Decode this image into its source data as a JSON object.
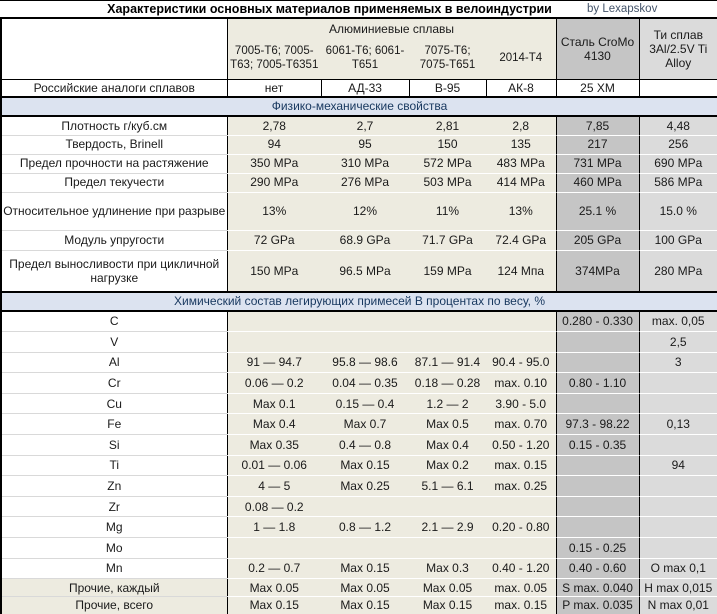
{
  "title": {
    "text": "Характеристики основных материалов применяемых в велоиндустрии",
    "byline": "by Lexapskov"
  },
  "colors": {
    "aluminum_bg": "#EDEBE0",
    "steel_bg": "#C5C5C5",
    "ti_bg": "#DBDBDB",
    "section_bg": "#DCE3F0",
    "section_text": "#17375E",
    "byline_text": "#44546A",
    "border": "#000000"
  },
  "header": {
    "group_aluminum": "Алюминиевые сплавы",
    "col_7005": "7005-T6; 7005-T63; 7005-T6351",
    "col_6061": "6061-T6; 6061-T651",
    "col_7075": "7075-T6; 7075-T651",
    "col_2014": "2014-T4",
    "col_steel": "Сталь CroMo 4130",
    "col_ti": "Ти сплав 3Al/2.5V Ti Alloy"
  },
  "table": {
    "rows": [
      {
        "type": "analog",
        "label": "Российские аналоги сплавов",
        "values": [
          "нет",
          "АД-33",
          "В-95",
          "АК-8",
          "25 ХМ",
          ""
        ]
      },
      {
        "section": "Физико-механические свойства"
      },
      {
        "label": "Плотность г/куб.см",
        "values": [
          "2,78",
          "2,7",
          "2,81",
          "2,8",
          "7,85",
          "4,48"
        ]
      },
      {
        "label": "Твердость, Brinell",
        "values": [
          "94",
          "95",
          "150",
          "135",
          "217",
          "256"
        ]
      },
      {
        "label": "Предел прочности на растяжение",
        "values": [
          "350 MPa",
          "310 MPa",
          "572 MPa",
          "483 MPa",
          "731 MPa",
          "690 MPa"
        ]
      },
      {
        "label": "Предел текучести",
        "values": [
          "290 MPa",
          "276 MPa",
          "503 MPa",
          "414 MPa",
          "460 MPa",
          "586 MPa"
        ]
      },
      {
        "label": "Относительное удлинение при разрыве",
        "values": [
          "13%",
          "12%",
          "11%",
          "13%",
          "25.1 %",
          "15.0 %"
        ]
      },
      {
        "label": "Модуль упругости",
        "values": [
          "72 GPa",
          "68.9 GPa",
          "71.7 GPa",
          "72.4 GPa",
          "205 GPa",
          "100 GPa"
        ]
      },
      {
        "label": "Предел выносливости при цикличной нагрузке",
        "values": [
          "150 MPa",
          "96.5 MPa",
          "159 MPa",
          "124 Мпа",
          "374MPa",
          "280 MPa"
        ]
      },
      {
        "section": "Химический состав легирующих примесей В процентах по весу, %"
      },
      {
        "label": "C",
        "values": [
          "",
          "",
          "",
          "",
          "0.280 - 0.330",
          "max. 0,05"
        ]
      },
      {
        "label": "V",
        "values": [
          "",
          "",
          "",
          "",
          "",
          "2,5"
        ]
      },
      {
        "label": "Al",
        "values": [
          "91 — 94.7",
          "95.8 — 98.6",
          "87.1 — 91.4",
          "90.4 - 95.0",
          "",
          "3"
        ]
      },
      {
        "label": "Cr",
        "values": [
          "0.06 — 0.2",
          "0.04 — 0.35",
          "0.18 — 0.28",
          "max. 0.10",
          "0.80 - 1.10",
          ""
        ]
      },
      {
        "label": "Cu",
        "values": [
          "Max 0.1",
          "0.15 — 0.4",
          "1.2 — 2",
          "3.90 - 5.0",
          "",
          ""
        ]
      },
      {
        "label": "Fe",
        "values": [
          "Max 0.4",
          "Max 0.7",
          "Max 0.5",
          "max. 0.70",
          "97.3 - 98.22",
          "0,13"
        ]
      },
      {
        "label": "Si",
        "values": [
          "Max 0.35",
          "0.4 — 0.8",
          "Max 0.4",
          "0.50 - 1.20",
          "0.15 - 0.35",
          ""
        ]
      },
      {
        "label": "Ti",
        "values": [
          "0.01 — 0.06",
          "Max 0.15",
          "Max 0.2",
          "max. 0.15",
          "",
          "94"
        ]
      },
      {
        "label": "Zn",
        "values": [
          "4 — 5",
          "Max 0.25",
          "5.1 — 6.1",
          "max. 0.25",
          "",
          ""
        ]
      },
      {
        "label": "Zr",
        "values": [
          "0.08 — 0.2",
          "",
          "",
          "",
          "",
          ""
        ]
      },
      {
        "label": "Mg",
        "values": [
          "1 — 1.8",
          "0.8 — 1.2",
          "2.1 — 2.9",
          "0.20 - 0.80",
          "",
          ""
        ]
      },
      {
        "label": "Mo",
        "values": [
          "",
          "",
          "",
          "",
          "0.15 - 0.25",
          ""
        ]
      },
      {
        "label": "Mn",
        "values": [
          "0.2 — 0.7",
          "Max 0.15",
          "Max 0.3",
          "0.40 - 1.20",
          "0.40 - 0.60",
          "O max 0,1"
        ]
      },
      {
        "type": "totals",
        "labelBeige": true,
        "label": "Прочие, каждый",
        "values": [
          "Max 0.05",
          "Max 0.05",
          "Max 0.05",
          "max. 0.05",
          "S max. 0.040",
          "H max 0,015"
        ]
      },
      {
        "type": "totals",
        "labelBeige": true,
        "label": "Прочие, всего",
        "values": [
          "Max 0.15",
          "Max 0.15",
          "Max 0.15",
          "max. 0.15",
          "P max. 0.035",
          "N max 0,01"
        ]
      }
    ]
  }
}
